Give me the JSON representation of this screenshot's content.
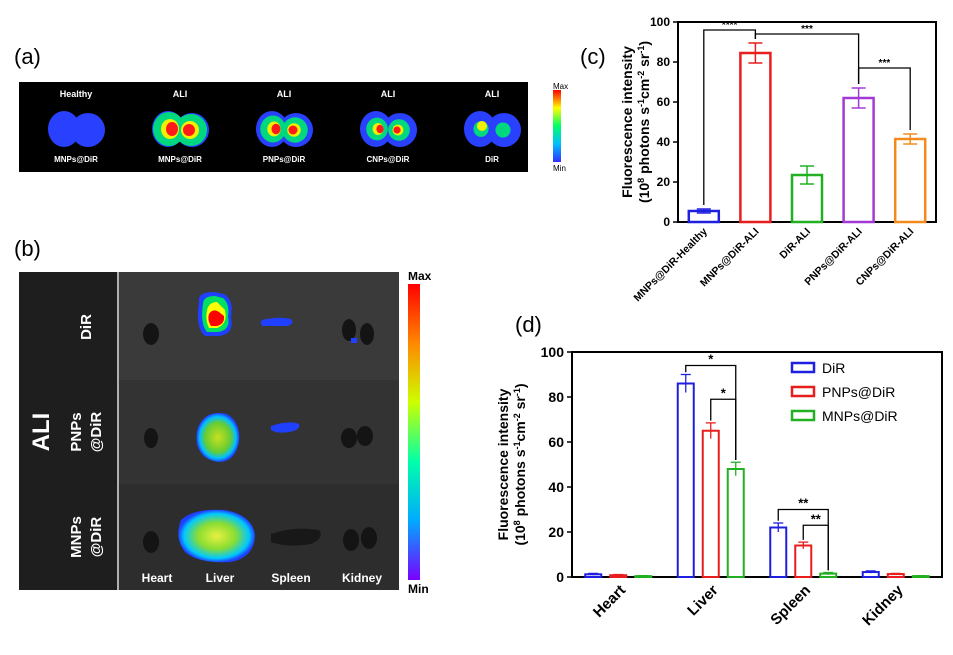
{
  "panels": {
    "a": "(a)",
    "b": "(b)",
    "c": "(c)",
    "d": "(d)"
  },
  "panel_a": {
    "colorbar": {
      "max": "Max",
      "min": "Min"
    },
    "samples": [
      {
        "top": "Healthy",
        "bottom": "MNPs@DiR",
        "intensity": 0.15
      },
      {
        "top": "ALI",
        "bottom": "MNPs@DiR",
        "intensity": 1.0
      },
      {
        "top": "ALI",
        "bottom": "PNPs@DiR",
        "intensity": 0.75
      },
      {
        "top": "ALI",
        "bottom": "CNPs@DiR",
        "intensity": 0.6
      },
      {
        "top": "ALI",
        "bottom": "DiR",
        "intensity": 0.35
      }
    ]
  },
  "panel_b": {
    "group_label": "ALI",
    "row_labels": [
      [
        "DiR"
      ],
      [
        "PNPs",
        "@DiR"
      ],
      [
        "MNPs",
        "@DiR"
      ]
    ],
    "organ_labels": [
      "Heart",
      "Liver",
      "Spleen",
      "Kidney"
    ],
    "colorbar": {
      "max": "Max",
      "min": "Min"
    }
  },
  "chart_data": [
    {
      "id": "c",
      "type": "bar",
      "categories": [
        "MNPs@DiR-Healthy",
        "MNPs@DiR-ALI",
        "DiR-ALI",
        "PNPs@DiR-ALI",
        "CNPs@DiR-ALI"
      ],
      "values": [
        5.5,
        84.5,
        23.5,
        62,
        41.5
      ],
      "errors": [
        1,
        5,
        4.5,
        5,
        2.5
      ],
      "colors": [
        "#1f1fe0",
        "#e81e1e",
        "#22b022",
        "#a33ad6",
        "#f28a1e"
      ],
      "ylabel_line1": "Fluorescence intensity",
      "ylabel_line2": "(10^8 photons s^-1cm^-2 sr^-1)",
      "ylim": [
        0,
        100
      ],
      "yticks": [
        0,
        20,
        40,
        60,
        80,
        100
      ],
      "significance": [
        {
          "from": 0,
          "to": 1,
          "label": "****"
        },
        {
          "from": 1,
          "to": 3,
          "label": "***"
        },
        {
          "from": 3,
          "to": 4,
          "label": "***"
        }
      ]
    },
    {
      "id": "d",
      "type": "bar",
      "categories": [
        "Heart",
        "Liver",
        "Spleen",
        "Kidney"
      ],
      "series": [
        {
          "name": "DiR",
          "color": "#1f1fe0",
          "values": [
            1.2,
            86,
            22,
            2.2
          ],
          "errors": [
            0.4,
            4,
            2,
            0.5
          ]
        },
        {
          "name": "PNPs@DiR",
          "color": "#e81e1e",
          "values": [
            0.8,
            65,
            14,
            1.3
          ],
          "errors": [
            0.3,
            3.5,
            1.5,
            0.3
          ]
        },
        {
          "name": "MNPs@DiR",
          "color": "#22b022",
          "values": [
            0.4,
            48,
            1.5,
            0.4
          ],
          "errors": [
            0.2,
            3,
            0.5,
            0.2
          ]
        }
      ],
      "ylabel_line1": "Fluorescence intensity",
      "ylabel_line2": "(10^8 photons s^-1cm^-2 sr^-1)",
      "ylim": [
        0,
        100
      ],
      "yticks": [
        0,
        20,
        40,
        60,
        80,
        100
      ],
      "legend": "top-right",
      "significance": [
        {
          "category": 1,
          "from": 0,
          "to": 2,
          "label": "*"
        },
        {
          "category": 1,
          "from": 1,
          "to": 2,
          "label": "*"
        },
        {
          "category": 2,
          "from": 0,
          "to": 2,
          "label": "**"
        },
        {
          "category": 2,
          "from": 1,
          "to": 2,
          "label": "**"
        }
      ]
    }
  ]
}
